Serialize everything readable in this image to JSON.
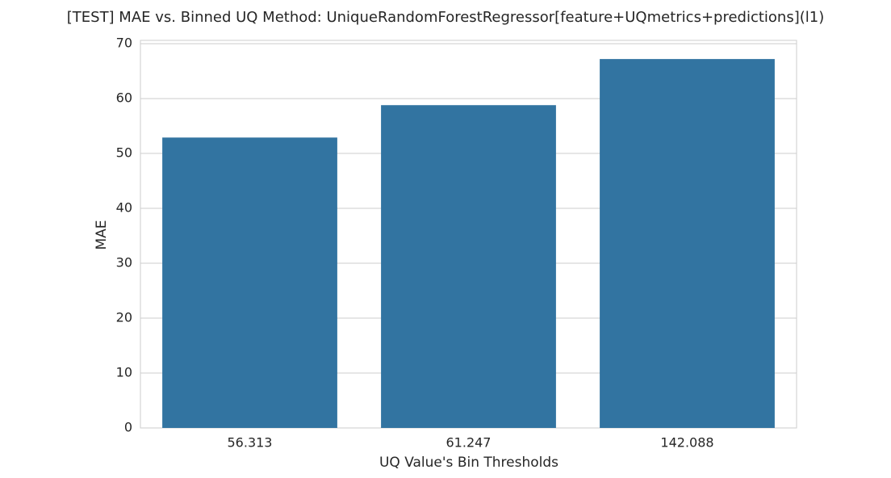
{
  "chart_data": {
    "type": "bar",
    "title": "[TEST] MAE vs. Binned UQ Method: UniqueRandomForestRegressor[feature+UQmetrics+predictions](l1)",
    "x_label": "UQ Value's Bin Thresholds",
    "y_label": "MAE",
    "categories": [
      "56.313",
      "61.247",
      "142.088"
    ],
    "values": [
      52.9,
      58.8,
      67.2
    ],
    "color": "#3274a1",
    "ylim": [
      0,
      70.6
    ],
    "yticks": [
      0,
      10,
      20,
      30,
      40,
      50,
      60,
      70
    ],
    "grid": true
  }
}
